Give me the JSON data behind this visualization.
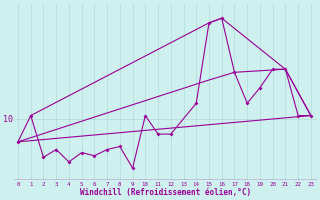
{
  "background_color": "#cef0ee",
  "line_color": "#990099",
  "grid_color": "#b0ddd8",
  "xlabel": "Windchill (Refroidissement éolien,°C)",
  "ylabel_tick": "10",
  "ytick_val": 10,
  "ylim": [
    6.0,
    17.5
  ],
  "xlim": [
    -0.3,
    23.5
  ],
  "series1_x": [
    0,
    1,
    2,
    3,
    4,
    5,
    6,
    7,
    8,
    9,
    10,
    11,
    12,
    14,
    15,
    16,
    17,
    18,
    19,
    20,
    21,
    22,
    23
  ],
  "series1_y": [
    8.5,
    10.2,
    7.5,
    8.0,
    7.2,
    7.8,
    7.6,
    8.0,
    8.2,
    6.8,
    10.2,
    9.0,
    9.0,
    11.0,
    16.2,
    16.5,
    13.0,
    11.0,
    12.0,
    13.2,
    13.2,
    10.2,
    10.2
  ],
  "series2_x": [
    0,
    23
  ],
  "series2_y": [
    8.5,
    10.2
  ],
  "series3_x": [
    0,
    15,
    17,
    21,
    23
  ],
  "series3_y": [
    8.5,
    12.5,
    13.0,
    13.2,
    10.2
  ],
  "series4_x": [
    1,
    15,
    16,
    21,
    23
  ],
  "series4_y": [
    10.2,
    16.2,
    16.5,
    13.2,
    10.2
  ]
}
